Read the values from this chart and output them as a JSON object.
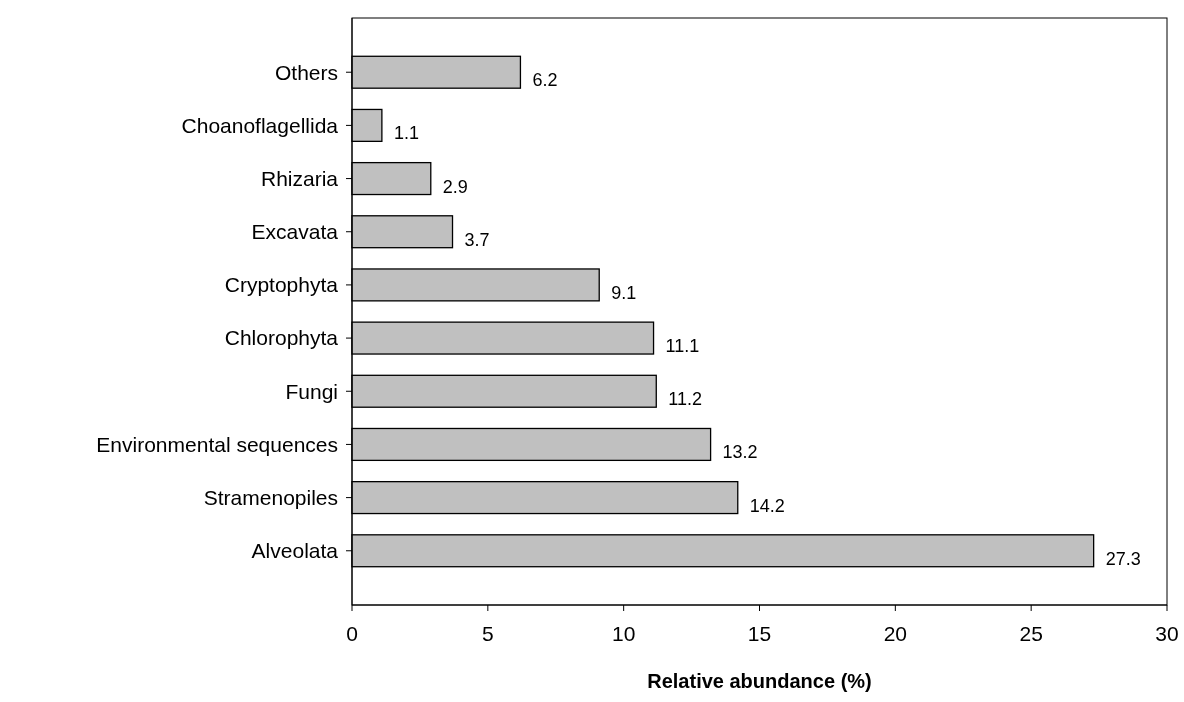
{
  "chart_data": {
    "type": "bar",
    "orientation": "horizontal",
    "xlabel": "Relative abundance (%)",
    "categories": [
      "Others",
      "Choanoflagellida",
      "Rhizaria",
      "Excavata",
      "Cryptophyta",
      "Chlorophyta",
      "Fungi",
      "Environmental sequences",
      "Stramenopiles",
      "Alveolata"
    ],
    "values": [
      6.2,
      1.1,
      2.9,
      3.7,
      9.1,
      11.1,
      11.2,
      13.2,
      14.2,
      27.3
    ],
    "color": "#c0c0c0",
    "xlim": [
      0,
      30
    ],
    "xticks": [
      0,
      5,
      10,
      15,
      20,
      25,
      30
    ],
    "data_labels": true,
    "grid": false
  }
}
